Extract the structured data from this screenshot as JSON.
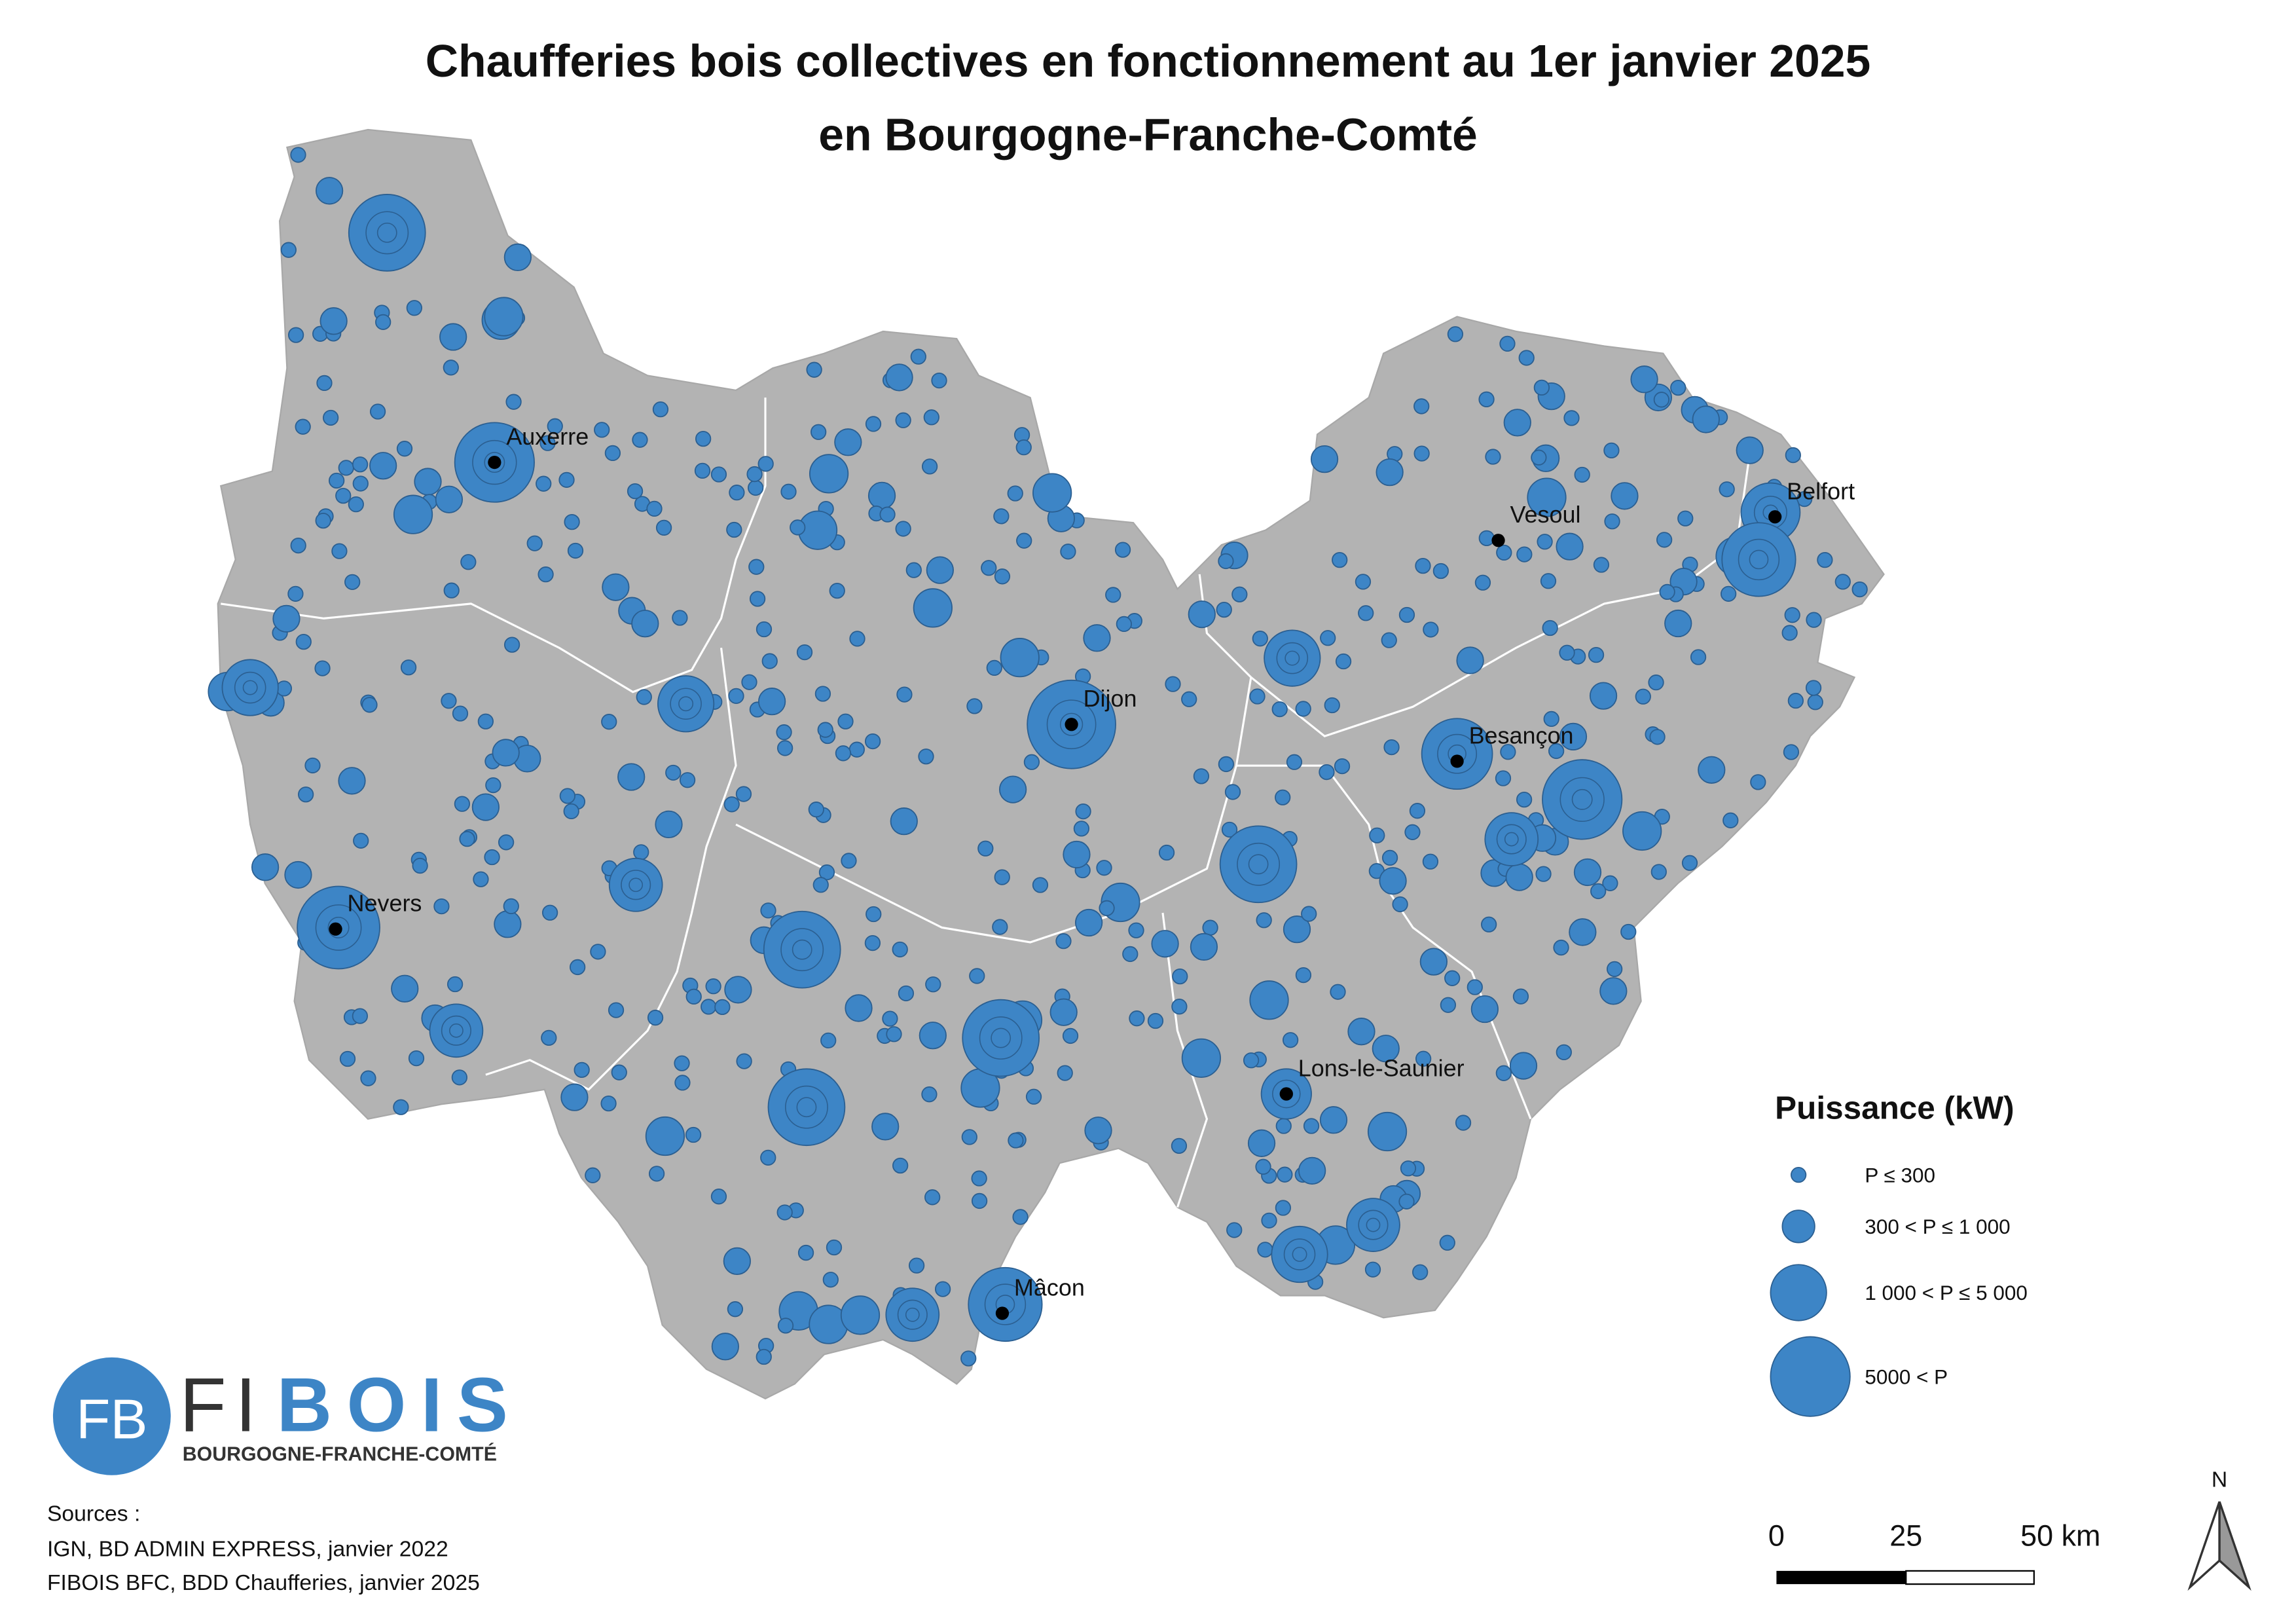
{
  "title": [
    "Chaufferies bois collectives en fonctionnement au 1er janvier 2025",
    "en Bourgogne-Franche-Comté"
  ],
  "cities": [
    "Auxerre",
    "Dijon",
    "Nevers",
    "Vesoul",
    "Belfort",
    "Besançon",
    "Lons-le-Saunier",
    "Mâcon"
  ],
  "legend": {
    "title": "Puissance (kW)",
    "items": [
      "P ≤ 300",
      "300 < P ≤ 1 000",
      "1 000 < P ≤ 5 000",
      "5000 < P"
    ]
  },
  "scale": {
    "labels": [
      "0",
      "25",
      "50 km"
    ]
  },
  "north": "N",
  "logo": {
    "monogram": "FB",
    "name_dark": "FI",
    "name_blue": "BOIS",
    "subtitle": "BOURGOGNE-FRANCHE-COMTÉ"
  },
  "sources": [
    "Sources :",
    "IGN, BD ADMIN EXPRESS, janvier 2022",
    "FIBOIS BFC, BDD Chaufferies, janvier 2025"
  ]
}
